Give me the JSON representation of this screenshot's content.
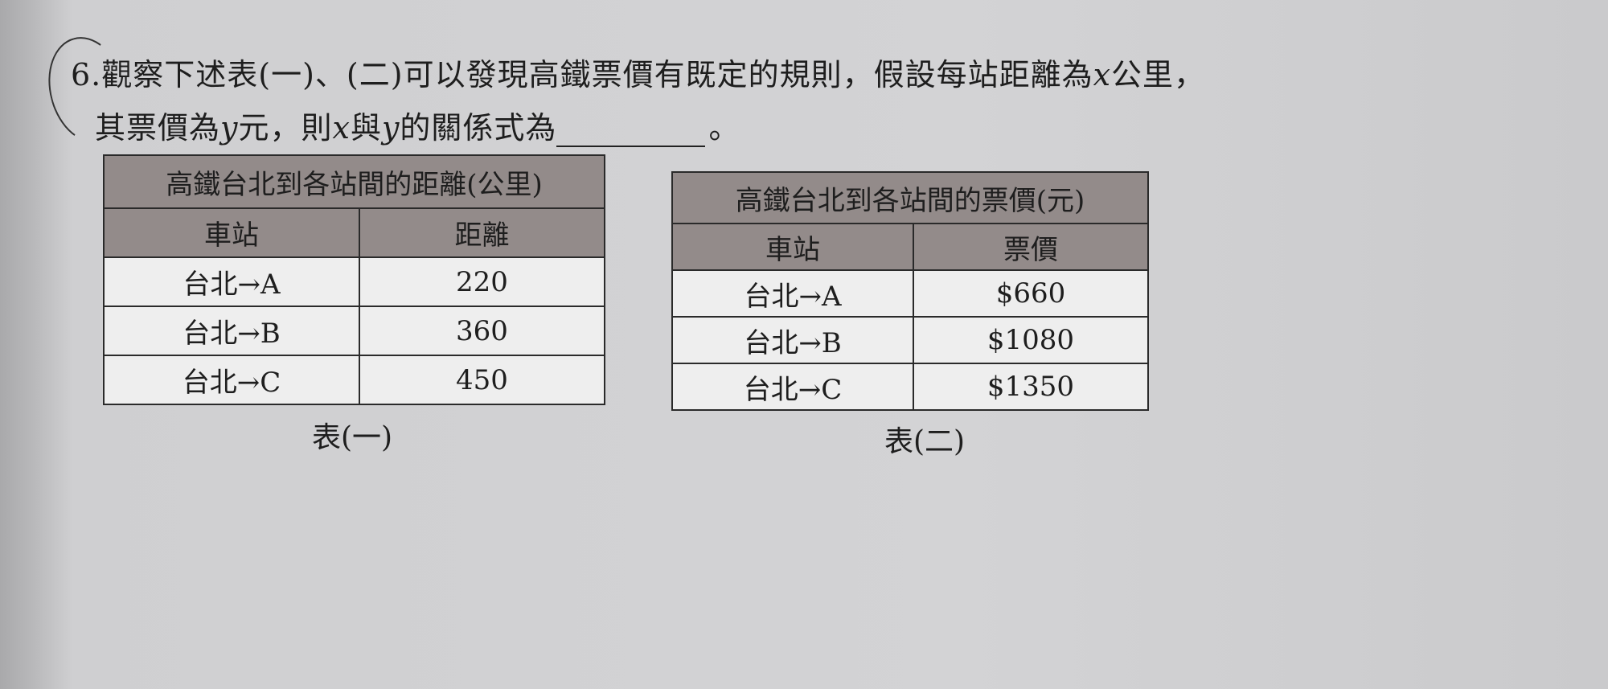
{
  "question": {
    "number": "6.",
    "line1_a": "觀察下述表(一)、(二)可以發現高鐵票價有既定的規則，假設每站距離為",
    "var_x": "x",
    "line1_b": "公里，",
    "line2_a": "其票價為",
    "var_y": "y",
    "line2_b": "元，則",
    "line2_c": "與",
    "line2_d": "的關係式為",
    "end": "。"
  },
  "table1": {
    "title": "高鐵台北到各站間的距離(公里)",
    "headers": [
      "車站",
      "距離"
    ],
    "rows": [
      [
        "台北→A",
        "220"
      ],
      [
        "台北→B",
        "360"
      ],
      [
        "台北→C",
        "450"
      ]
    ],
    "caption": "表(一)"
  },
  "table2": {
    "title": "高鐵台北到各站間的票價(元)",
    "headers": [
      "車站",
      "票價"
    ],
    "rows": [
      [
        "台北→A",
        "$660"
      ],
      [
        "台北→B",
        "$1080"
      ],
      [
        "台北→C",
        "$1350"
      ]
    ],
    "caption": "表(二)"
  }
}
